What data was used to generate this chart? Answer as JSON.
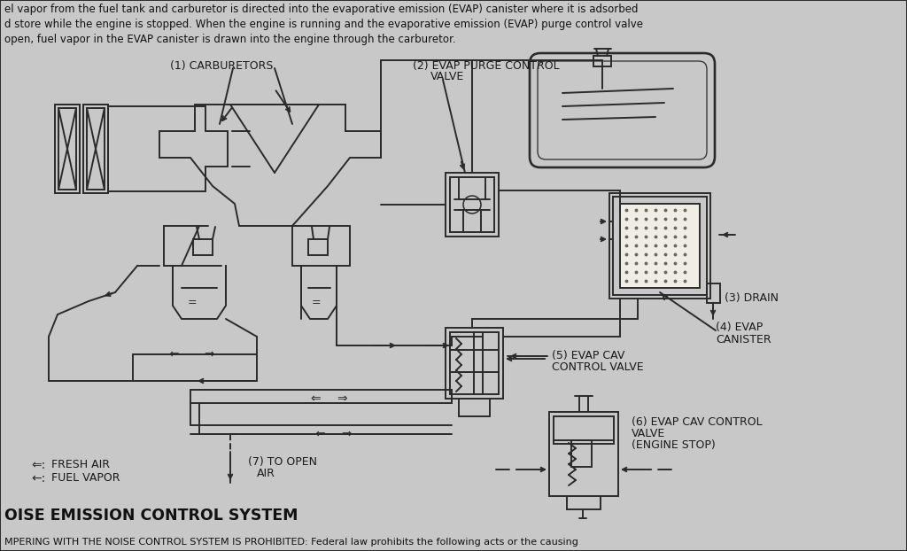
{
  "bg_color": "#c8c8c8",
  "diagram_bg": "#e8e4dc",
  "line_color": "#2a2a2a",
  "text_color": "#1a1a1a",
  "top_lines": [
    "el vapor from the fuel tank and carburetor is directed into the evaporative emission (EVAP) canister where it is adsorbed",
    "d store while the engine is stopped. When the engine is running and the evaporative emission (EVAP) purge control valve",
    "open, fuel vapor in the EVAP canister is drawn into the engine through the carburetor."
  ],
  "bottom_line": "MPERING WITH THE NOISE CONTROL SYSTEM IS PROHIBITED: Federal law prohibits the following acts or the causing",
  "title": "OISE EMISSION CONTROL SYSTEM",
  "label1": "(1) CARBURETORS",
  "label2_1": "(2) EVAP PURGE CONTROL",
  "label2_2": "VALVE",
  "label3": "(3) DRAIN",
  "label4_1": "(4) EVAP",
  "label4_2": "CANISTER",
  "label5_1": "(5) EVAP CAV",
  "label5_2": "CONTROL VALVE",
  "label6_1": "(6) EVAP CAV CONTROL",
  "label6_2": "VALVE",
  "label6_3": "(ENGINE STOP)",
  "label7_1": "(7) TO OPEN",
  "label7_2": "AIR",
  "legend1": "FRESH AIR",
  "legend2": "FUEL VAPOR"
}
